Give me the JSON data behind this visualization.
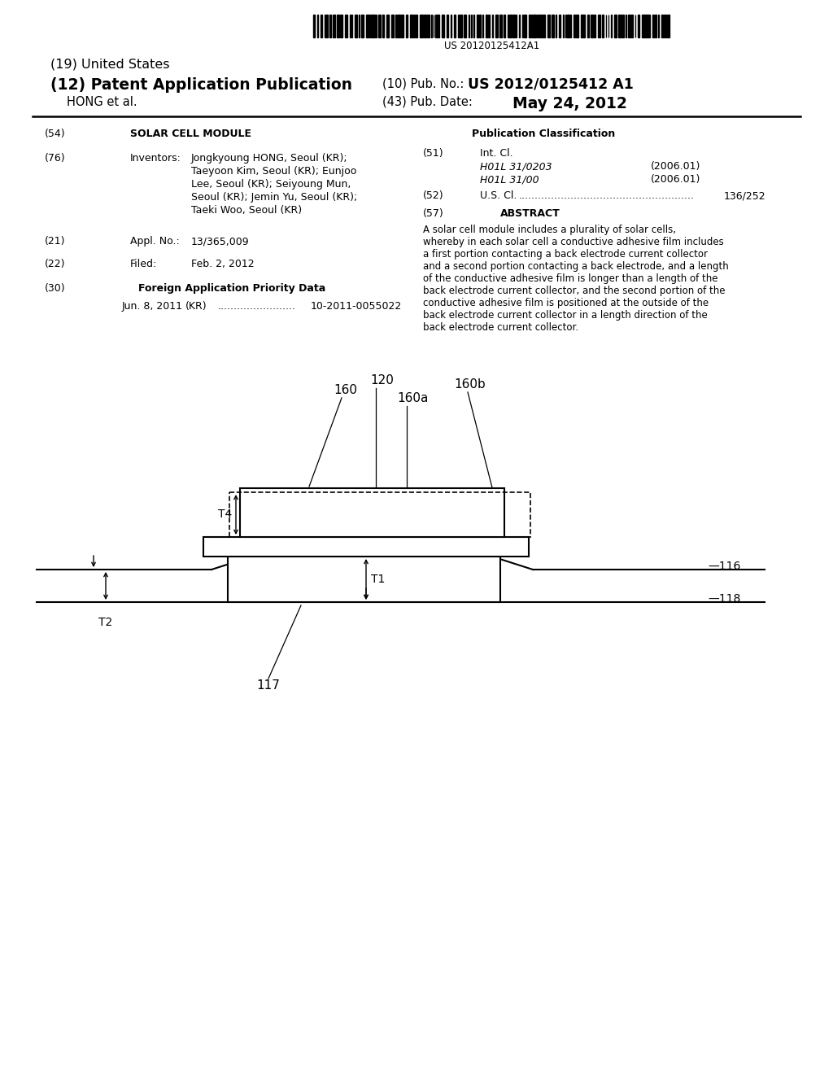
{
  "background_color": "#ffffff",
  "barcode_text": "US 20120125412A1",
  "header_19": "(19) United States",
  "header_12": "(12) Patent Application Publication",
  "header_10_label": "(10) Pub. No.:",
  "header_10_value": "US 2012/0125412 A1",
  "header_hong": "HONG et al.",
  "header_43_label": "(43) Pub. Date:",
  "header_43_value": "May 24, 2012",
  "field_54_label": "(54)",
  "field_54_value": "SOLAR CELL MODULE",
  "field_76_label": "(76)",
  "field_76_title": "Inventors:",
  "field_76_lines": [
    "Jongkyoung HONG, Seoul (KR);",
    "Taeyoon Kim, Seoul (KR); Eunjoo",
    "Lee, Seoul (KR); Seiyoung Mun,",
    "Seoul (KR); Jemin Yu, Seoul (KR);",
    "Taeki Woo, Seoul (KR)"
  ],
  "field_21_label": "(21)",
  "field_21_title": "Appl. No.:",
  "field_21_value": "13/365,009",
  "field_22_label": "(22)",
  "field_22_title": "Filed:",
  "field_22_value": "Feb. 2, 2012",
  "field_30_label": "(30)",
  "field_30_title": "Foreign Application Priority Data",
  "field_30_date": "Jun. 8, 2011",
  "field_30_country": "(KR)",
  "field_30_dots": "........................",
  "field_30_number": "10-2011-0055022",
  "pub_class_title": "Publication Classification",
  "field_51_label": "(51)",
  "field_51_title": "Int. Cl.",
  "field_51_class1": "H01L 31/0203",
  "field_51_year1": "(2006.01)",
  "field_51_class2": "H01L 31/00",
  "field_51_year2": "(2006.01)",
  "field_52_label": "(52)",
  "field_52_text": "U.S. Cl.",
  "field_52_dots": "......................................................",
  "field_52_value": "136/252",
  "field_57_label": "(57)",
  "field_57_title": "ABSTRACT",
  "abstract_lines": [
    "A solar cell module includes a plurality of solar cells,",
    "whereby in each solar cell a conductive adhesive film includes",
    "a first portion contacting a back electrode current collector",
    "and a second portion contacting a back electrode, and a length",
    "of the conductive adhesive film is longer than a length of the",
    "back electrode current collector, and the second portion of the",
    "conductive adhesive film is positioned at the outside of the",
    "back electrode current collector in a length direction of the",
    "back electrode current collector."
  ]
}
